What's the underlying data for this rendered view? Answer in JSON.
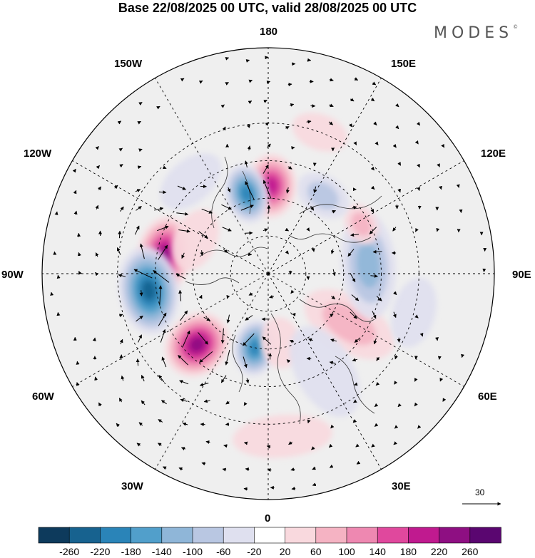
{
  "title": "Base 22/08/2025 00 UTC, valid 28/08/2025 00 UTC",
  "brand": "MODES",
  "brand_mark": "©",
  "longitude_labels": {
    "top": "180",
    "bottom": "0",
    "left": "90W",
    "right": "90E",
    "upper_left_1": "150W",
    "upper_left_2": "120W",
    "lower_left_1": "60W",
    "lower_left_2": "30W",
    "upper_right_1": "150E",
    "upper_right_2": "120E",
    "lower_right_1": "60E",
    "lower_right_2": "30E"
  },
  "reference_vector": {
    "value": "30"
  },
  "colorbar": {
    "labels": [
      "-260",
      "-220",
      "-180",
      "-140",
      "-100",
      "-60",
      "-20",
      "20",
      "60",
      "100",
      "140",
      "180",
      "220",
      "260"
    ],
    "colors": [
      "#0d3a5c",
      "#17628f",
      "#2a84b8",
      "#519fcb",
      "#8fb6d8",
      "#b9c7e2",
      "#dfe0ef",
      "#ffffff",
      "#f9d9de",
      "#f5b3c3",
      "#ee88b1",
      "#e0489d",
      "#c01a8f",
      "#8e0f82",
      "#5a0670"
    ]
  },
  "anomaly_centers": [
    {
      "lon": -100,
      "lat": 48,
      "value": 260,
      "rx": 55,
      "ry": 38
    },
    {
      "lon": -82,
      "lat": 42,
      "value": -260,
      "rx": 62,
      "ry": 42
    },
    {
      "lon": -45,
      "lat": 50,
      "value": 270,
      "rx": 42,
      "ry": 48
    },
    {
      "lon": -10,
      "lat": 60,
      "value": -200,
      "rx": 30,
      "ry": 40
    },
    {
      "lon": 10,
      "lat": 62,
      "value": 40,
      "rx": 28,
      "ry": 36
    },
    {
      "lon": 58,
      "lat": 52,
      "value": 110,
      "rx": 38,
      "ry": 70
    },
    {
      "lon": 95,
      "lat": 50,
      "value": -150,
      "rx": 75,
      "ry": 38
    },
    {
      "lon": 118,
      "lat": 48,
      "value": 110,
      "rx": 30,
      "ry": 22
    },
    {
      "lon": 145,
      "lat": 52,
      "value": -80,
      "rx": 40,
      "ry": 28
    },
    {
      "lon": 178,
      "lat": 55,
      "value": 200,
      "rx": 35,
      "ry": 45
    },
    {
      "lon": -165,
      "lat": 57,
      "value": -230,
      "rx": 30,
      "ry": 42
    },
    {
      "lon": -140,
      "lat": 42,
      "value": -60,
      "rx": 50,
      "ry": 30
    },
    {
      "lon": -115,
      "lat": 58,
      "value": 50,
      "rx": 45,
      "ry": 30
    },
    {
      "lon": 30,
      "lat": 45,
      "value": -40,
      "rx": 40,
      "ry": 70
    },
    {
      "lon": 75,
      "lat": 30,
      "value": -30,
      "rx": 50,
      "ry": 30
    },
    {
      "lon": 5,
      "lat": 25,
      "value": 40,
      "rx": 70,
      "ry": 30
    },
    {
      "lon": 160,
      "lat": 30,
      "value": 40,
      "rx": 40,
      "ry": 25
    }
  ]
}
